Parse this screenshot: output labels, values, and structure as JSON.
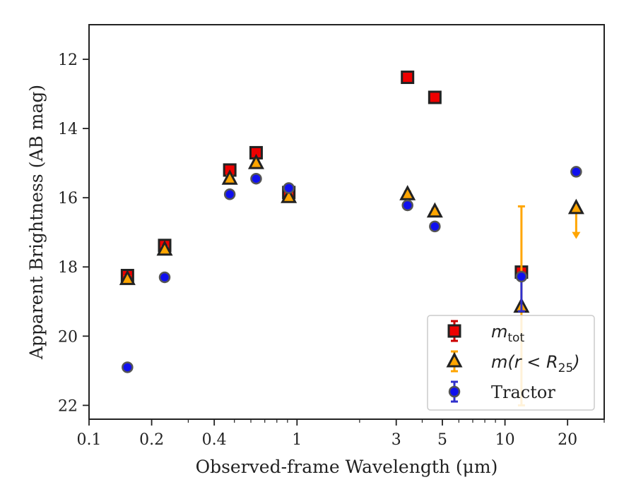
{
  "chart_data": {
    "type": "scatter",
    "xlabel": "Observed-frame Wavelength (μm)",
    "ylabel": "Apparent Brightness (AB mag)",
    "x_scale": "log",
    "xlim": [
      0.1,
      30
    ],
    "ylim": [
      22.4,
      11.0
    ],
    "y_inverted": true,
    "x_ticks": [
      0.1,
      0.2,
      0.4,
      1,
      3,
      5,
      10,
      20
    ],
    "x_tick_labels": [
      "0.1",
      "0.2",
      "0.4",
      "1",
      "3",
      "5",
      "10",
      "20"
    ],
    "y_ticks": [
      12,
      14,
      16,
      18,
      20,
      22
    ],
    "y_tick_labels": [
      "12",
      "14",
      "16",
      "18",
      "20",
      "22"
    ],
    "legend_placement": "lower-right",
    "series": [
      {
        "name": "m_tot",
        "legend_main": "m",
        "legend_sub": "tot",
        "marker": "square",
        "color": "#ee0000",
        "points": [
          {
            "x": 0.153,
            "y": 18.25
          },
          {
            "x": 0.231,
            "y": 17.38
          },
          {
            "x": 0.475,
            "y": 15.2
          },
          {
            "x": 0.636,
            "y": 14.7
          },
          {
            "x": 0.913,
            "y": 15.85
          },
          {
            "x": 3.4,
            "y": 12.52
          },
          {
            "x": 4.6,
            "y": 13.1
          },
          {
            "x": 12.0,
            "y": 18.15
          }
        ]
      },
      {
        "name": "m(r<R_25)",
        "legend_main": "m(r < R",
        "legend_sub": "25",
        "legend_end": ")",
        "marker": "triangle",
        "color": "#ffa500",
        "points": [
          {
            "x": 0.153,
            "y": 18.35
          },
          {
            "x": 0.231,
            "y": 17.5
          },
          {
            "x": 0.475,
            "y": 15.45
          },
          {
            "x": 0.636,
            "y": 15.0
          },
          {
            "x": 0.913,
            "y": 15.98
          },
          {
            "x": 3.4,
            "y": 15.9
          },
          {
            "x": 4.6,
            "y": 16.4
          },
          {
            "x": 12.0,
            "y": 19.15,
            "err_up": 2.9,
            "err_down": 2.85
          },
          {
            "x": 22.0,
            "y": 16.3,
            "upper_limit": true
          }
        ]
      },
      {
        "name": "Tractor",
        "legend_main": "Tractor",
        "marker": "circle",
        "color": "#1010ee",
        "points": [
          {
            "x": 0.153,
            "y": 20.9
          },
          {
            "x": 0.231,
            "y": 18.3
          },
          {
            "x": 0.475,
            "y": 15.9
          },
          {
            "x": 0.636,
            "y": 15.45
          },
          {
            "x": 0.913,
            "y": 15.72
          },
          {
            "x": 3.4,
            "y": 16.22
          },
          {
            "x": 4.6,
            "y": 16.83
          },
          {
            "x": 12.0,
            "y": 18.28,
            "err_up": 0.0,
            "err_down": 1.0
          },
          {
            "x": 22.0,
            "y": 15.25
          }
        ]
      }
    ]
  }
}
